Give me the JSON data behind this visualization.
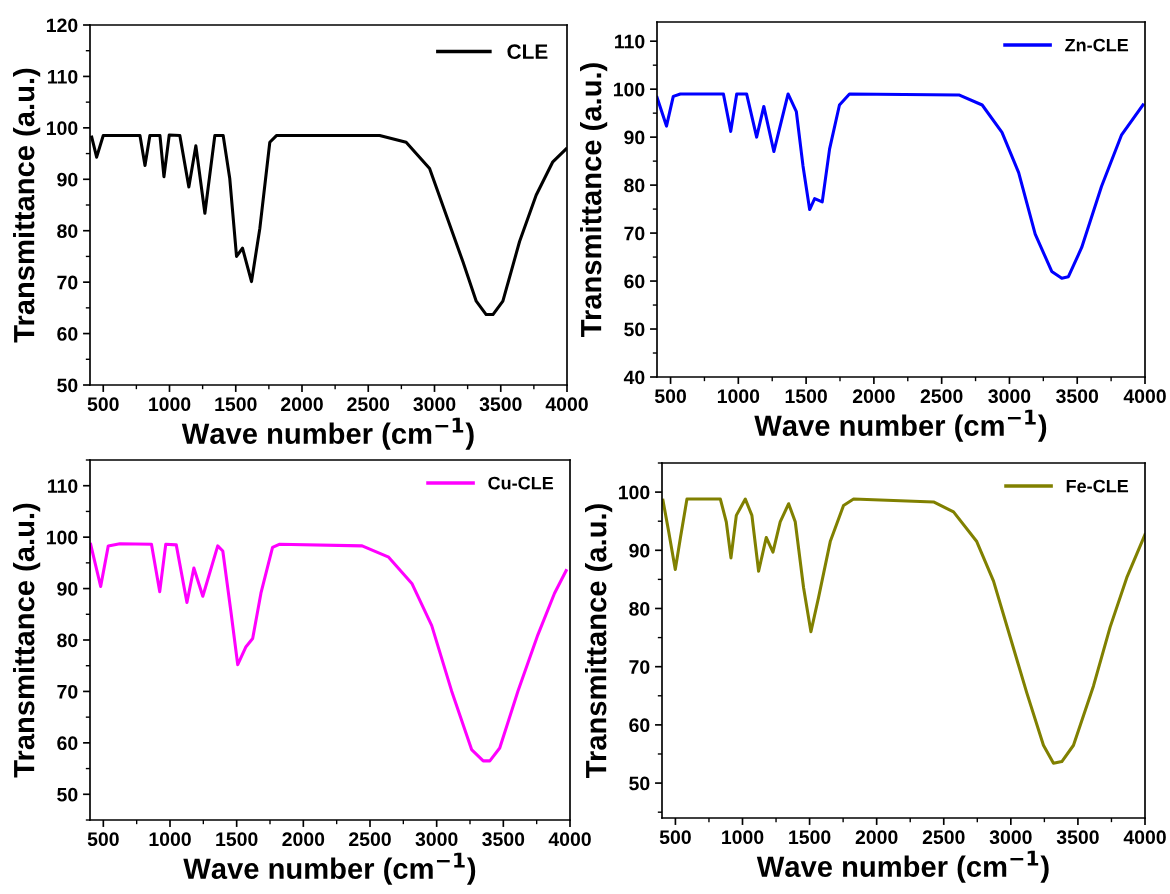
{
  "chart_data": [
    {
      "type": "line",
      "xlabel": "Wave number (cm$^{−1}$)",
      "ylabel": "Transmittance (a.u.)",
      "xlim": [
        400,
        4000
      ],
      "xticks": [
        500,
        1000,
        1500,
        2000,
        2500,
        3000,
        3500,
        4000
      ],
      "ylim": [
        50,
        120
      ],
      "yticks": [
        50,
        60,
        70,
        80,
        90,
        100,
        110,
        120
      ],
      "legend": "top right",
      "grid": false,
      "series": [
        {
          "name": "CLE",
          "color": "#000000",
          "x": [
            413,
            450,
            500,
            777,
            815,
            852,
            928,
            958,
            998,
            1078,
            1146,
            1199,
            1267,
            1342,
            1405,
            1455,
            1506,
            1551,
            1619,
            1682,
            1757,
            1807,
            2586,
            2786,
            2963,
            3089,
            3214,
            3315,
            3390,
            3441,
            3516,
            3642,
            3767,
            3893,
            3993
          ],
          "values": [
            98.2,
            94.3,
            98.5,
            98.5,
            92.7,
            98.5,
            98.5,
            90.5,
            98.6,
            98.5,
            88.5,
            96.5,
            83.4,
            98.5,
            98.5,
            90.1,
            75,
            76.6,
            70.1,
            80.5,
            97.2,
            98.5,
            98.5,
            97.2,
            92.1,
            83,
            74,
            66.3,
            63.7,
            63.7,
            66.3,
            77.9,
            86.9,
            93.4,
            95.9
          ]
        }
      ]
    },
    {
      "type": "line",
      "xlabel": "Wave number (cm$^{−1}$)",
      "ylabel": "Transmittance (a.u.)",
      "xlim": [
        400,
        4000
      ],
      "xticks": [
        500,
        1000,
        1500,
        2000,
        2500,
        3000,
        3500,
        4000
      ],
      "ylim": [
        40,
        114
      ],
      "yticks": [
        40,
        50,
        60,
        70,
        80,
        90,
        100,
        110
      ],
      "legend": "top right",
      "grid": false,
      "series": [
        {
          "name": "Zn-CLE",
          "color": "#0000ff",
          "x": [
            400,
            470,
            520,
            572,
            890,
            944,
            988,
            1061,
            1135,
            1188,
            1262,
            1367,
            1428,
            1477,
            1526,
            1563,
            1619,
            1673,
            1746,
            1820,
            2627,
            2799,
            2945,
            3068,
            3190,
            3312,
            3386,
            3435,
            3533,
            3679,
            3826,
            3985
          ],
          "values": [
            98.3,
            92.3,
            98.5,
            99,
            99,
            91.2,
            99,
            99,
            90,
            96.4,
            87,
            99,
            95.3,
            84,
            74.9,
            77.2,
            76.5,
            87.5,
            96.7,
            99,
            98.8,
            96.7,
            91,
            82.6,
            69.8,
            62,
            60.6,
            60.9,
            67,
            79.7,
            90.4,
            96.7
          ]
        }
      ]
    },
    {
      "type": "line",
      "xlabel": "Wave number (cm$^{−1}$)",
      "ylabel": "Transmittance (a.u.)",
      "xlim": [
        400,
        4000
      ],
      "xticks": [
        500,
        1000,
        1500,
        2000,
        2500,
        3000,
        3500,
        4000
      ],
      "ylim": [
        45,
        115
      ],
      "yticks": [
        50,
        60,
        70,
        80,
        90,
        100,
        110
      ],
      "legend": "top right",
      "grid": false,
      "series": [
        {
          "name": "Cu-CLE",
          "color": "#ff00ff",
          "x": [
            405,
            480,
            537,
            624,
            861,
            923,
            968,
            1047,
            1127,
            1179,
            1246,
            1358,
            1396,
            1458,
            1508,
            1570,
            1620,
            1682,
            1769,
            1819,
            2441,
            2640,
            2814,
            2963,
            3112,
            3262,
            3349,
            3399,
            3473,
            3610,
            3759,
            3884,
            3971
          ],
          "values": [
            98.6,
            90.4,
            98.3,
            98.7,
            98.6,
            89.4,
            98.6,
            98.5,
            87.3,
            94,
            88.5,
            98.3,
            97.3,
            85.3,
            75.2,
            78.7,
            80.3,
            89.1,
            98,
            98.6,
            98.3,
            96.1,
            91,
            82.8,
            70.1,
            58.7,
            56.5,
            56.5,
            59,
            70.1,
            81,
            89.1,
            93.5
          ]
        }
      ]
    },
    {
      "type": "line",
      "xlabel": "Wave number (cm$^{−1}$)",
      "ylabel": "Transmittance (a.u.)",
      "xlim": [
        400,
        4000
      ],
      "xticks": [
        500,
        1000,
        1500,
        2000,
        2500,
        3000,
        3500,
        4000
      ],
      "ylim": [
        44,
        105
      ],
      "yticks": [
        50,
        60,
        70,
        80,
        90,
        100
      ],
      "legend": "top right",
      "grid": false,
      "series": [
        {
          "name": "Fe-CLE",
          "color": "#808000",
          "x": [
            407,
            450,
            499,
            537,
            586,
            835,
            879,
            914,
            954,
            1021,
            1070,
            1120,
            1177,
            1227,
            1281,
            1344,
            1393,
            1455,
            1510,
            1567,
            1654,
            1753,
            1828,
            2424,
            2573,
            2746,
            2871,
            2995,
            3119,
            3243,
            3318,
            3380,
            3467,
            3616,
            3740,
            3864,
            4000
          ],
          "values": [
            98.6,
            93.2,
            86.7,
            92.1,
            98.8,
            98.8,
            94.9,
            88.7,
            96,
            98.8,
            96,
            86.4,
            92.2,
            89.7,
            94.9,
            98,
            94.9,
            83.6,
            76,
            81.9,
            91.5,
            97.7,
            98.8,
            98.3,
            96.6,
            91.5,
            84.7,
            75.1,
            65.5,
            56.5,
            53.4,
            53.7,
            56.5,
            66.7,
            76.8,
            85.3,
            92.7
          ]
        }
      ]
    }
  ]
}
